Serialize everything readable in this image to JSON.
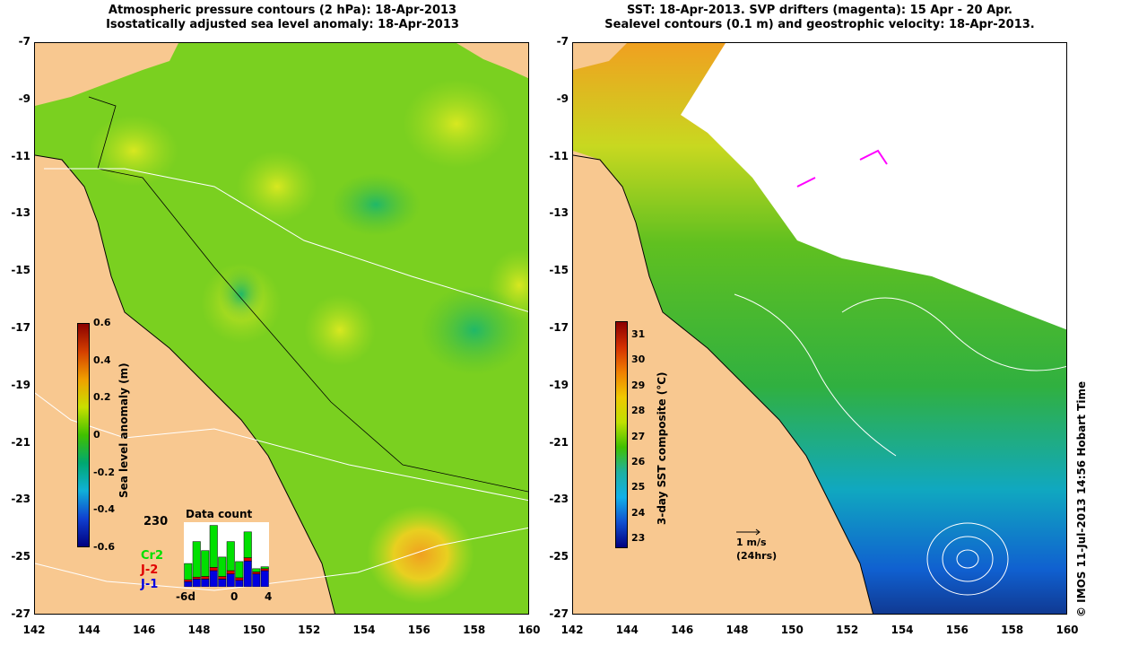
{
  "left_panel": {
    "title_line1": "Atmospheric pressure contours (2 hPa): 18-Apr-2013",
    "title_line2": "Isostatically adjusted sea level anomaly: 18-Apr-2013",
    "colorbar": {
      "label": "Sea level anomaly (m)",
      "ticks": [
        "0.6",
        "0.4",
        "0.2",
        "0",
        "-0.2",
        "-0.4",
        "-0.6"
      ],
      "colors": [
        "#8b0000",
        "#d44000",
        "#f0a000",
        "#c8e000",
        "#40c000",
        "#00a870",
        "#10b0d8",
        "#1040d0",
        "#000080"
      ]
    },
    "inset": {
      "title": "Data count",
      "count": "230",
      "xticks": [
        "-6d",
        "0",
        "4"
      ],
      "legend": [
        {
          "name": "Cr2",
          "color": "#00e000"
        },
        {
          "name": "J-2",
          "color": "#e00000"
        },
        {
          "name": "J-1",
          "color": "#0000e0"
        }
      ],
      "bars": [
        {
          "cr2": 0.25,
          "j2": 0.03,
          "j1": 0.08
        },
        {
          "cr2": 0.55,
          "j2": 0.03,
          "j1": 0.12
        },
        {
          "cr2": 0.4,
          "j2": 0.04,
          "j1": 0.12
        },
        {
          "cr2": 0.65,
          "j2": 0.05,
          "j1": 0.25
        },
        {
          "cr2": 0.3,
          "j2": 0.04,
          "j1": 0.12
        },
        {
          "cr2": 0.45,
          "j2": 0.05,
          "j1": 0.2
        },
        {
          "cr2": 0.25,
          "j2": 0.04,
          "j1": 0.1
        },
        {
          "cr2": 0.4,
          "j2": 0.05,
          "j1": 0.4
        },
        {
          "cr2": 0.05,
          "j2": 0.03,
          "j1": 0.2
        },
        {
          "cr2": 0.03,
          "j2": 0.03,
          "j1": 0.25
        }
      ]
    }
  },
  "right_panel": {
    "title_line1": "SST: 18-Apr-2013. SVP drifters (magenta): 15 Apr - 20 Apr.",
    "title_line2": "Sealevel contours (0.1 m) and geostrophic velocity: 18-Apr-2013.",
    "colorbar": {
      "label": "3-day SST composite (°C)",
      "ticks": [
        "31",
        "30",
        "29",
        "28",
        "27",
        "26",
        "25",
        "24",
        "23"
      ],
      "colors": [
        "#8b0000",
        "#d43000",
        "#f08000",
        "#f0c800",
        "#c0e000",
        "#40c000",
        "#20b0a0",
        "#10b0e8",
        "#1050d0",
        "#000080"
      ]
    },
    "velocity_scale": {
      "label": "1 m/s",
      "sublabel": "(24hrs)"
    },
    "credit": "© IMOS 11-Jul-2013 14:56 Hobart Time"
  },
  "axes": {
    "lat_ticks": [
      "-7",
      "-9",
      "-11",
      "-13",
      "-15",
      "-17",
      "-19",
      "-21",
      "-23",
      "-25",
      "-27"
    ],
    "lon_ticks": [
      "142",
      "144",
      "146",
      "148",
      "150",
      "152",
      "154",
      "156",
      "158",
      "160"
    ],
    "lat_range": [
      -27,
      -7
    ],
    "lon_range": [
      142,
      160
    ]
  }
}
